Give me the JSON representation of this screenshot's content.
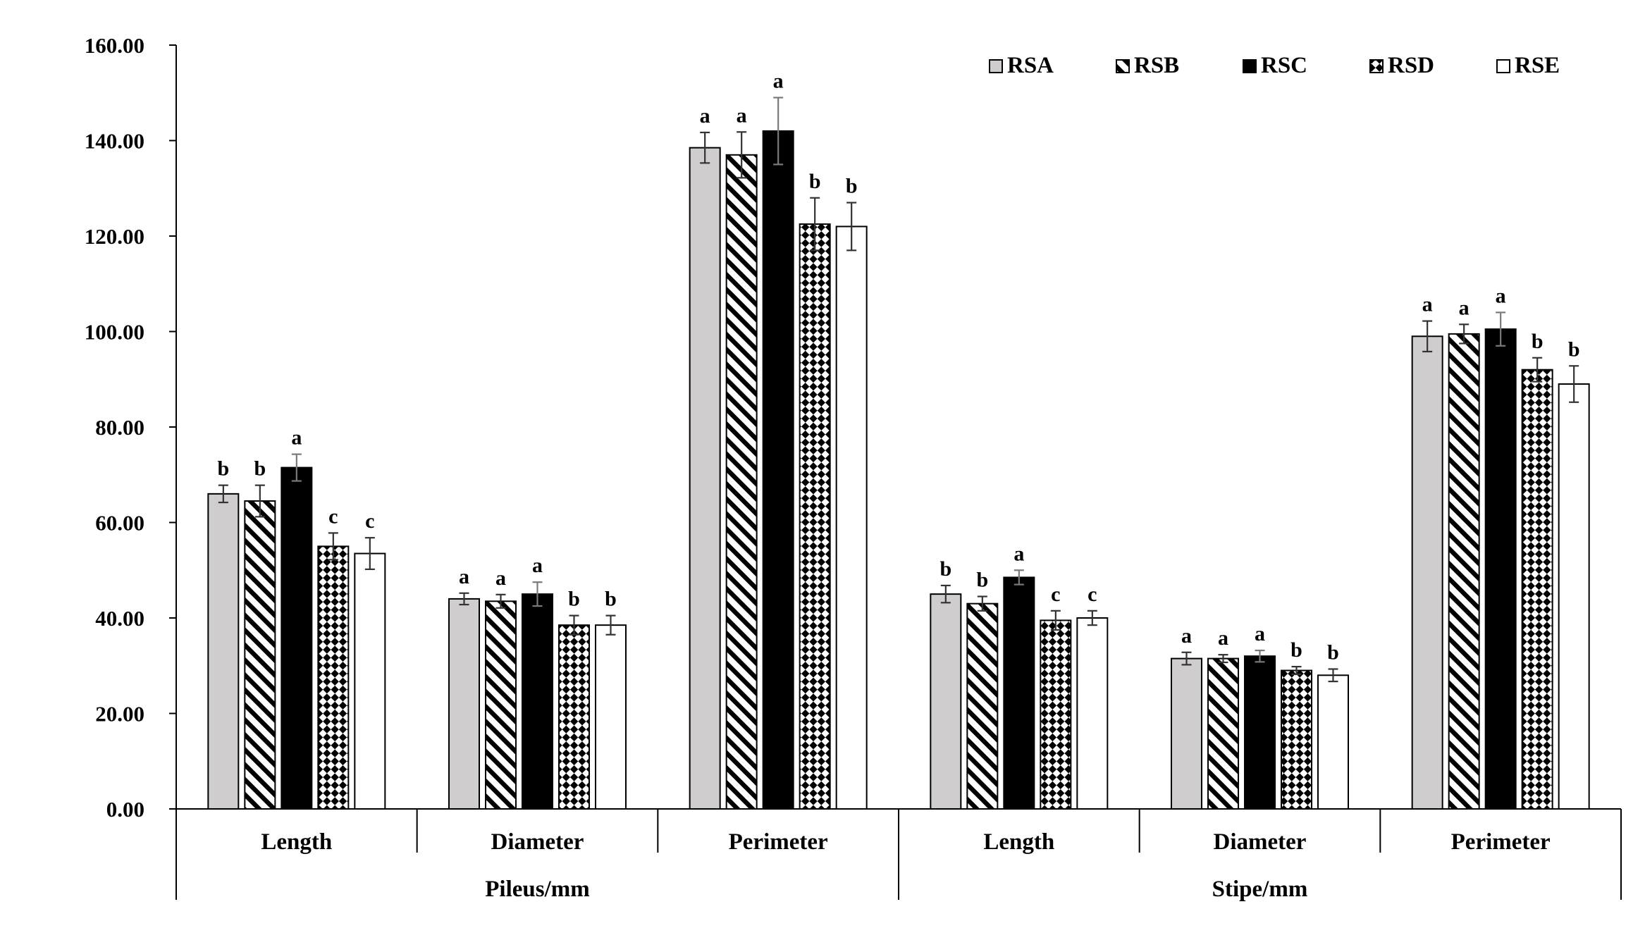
{
  "chart_data": {
    "type": "bar",
    "title": "",
    "ylim": [
      0,
      160
    ],
    "yticks": [
      0,
      20,
      40,
      60,
      80,
      100,
      120,
      140,
      160
    ],
    "ytick_labels": [
      "0.00",
      "20.00",
      "40.00",
      "60.00",
      "80.00",
      "100.00",
      "120.00",
      "140.00",
      "160.00"
    ],
    "grid": false,
    "legend_position": "top-right",
    "groups": [
      {
        "label": "Pileus/mm",
        "category_indices": [
          0,
          1,
          2
        ]
      },
      {
        "label": "Stipe/mm",
        "category_indices": [
          3,
          4,
          5
        ]
      }
    ],
    "categories": [
      "Length",
      "Diameter",
      "Perimeter",
      "Length",
      "Diameter",
      "Perimeter"
    ],
    "series": [
      {
        "name": "RSA",
        "pattern": "light-gray",
        "values": [
          66.0,
          44.0,
          138.5,
          45.0,
          31.5,
          99.0
        ],
        "errors": [
          1.8,
          1.2,
          3.2,
          1.8,
          1.3,
          3.2
        ],
        "letters": [
          "b",
          "a",
          "a",
          "b",
          "a",
          "a"
        ]
      },
      {
        "name": "RSB",
        "pattern": "diagonal-hatch",
        "values": [
          64.5,
          43.5,
          137.0,
          43.0,
          31.5,
          99.5
        ],
        "errors": [
          3.3,
          1.4,
          4.8,
          1.5,
          0.8,
          2.0
        ],
        "letters": [
          "b",
          "a",
          "a",
          "b",
          "a",
          "a"
        ]
      },
      {
        "name": "RSC",
        "pattern": "solid-black",
        "values": [
          71.5,
          45.0,
          142.0,
          48.5,
          32.0,
          100.5
        ],
        "errors": [
          2.8,
          2.5,
          7.0,
          1.5,
          1.2,
          3.5
        ],
        "letters": [
          "a",
          "a",
          "a",
          "a",
          "a",
          "a"
        ]
      },
      {
        "name": "RSD",
        "pattern": "checker",
        "values": [
          55.0,
          38.5,
          122.5,
          39.5,
          29.0,
          92.0
        ],
        "errors": [
          2.8,
          2.0,
          5.5,
          2.0,
          0.8,
          2.5
        ],
        "letters": [
          "c",
          "b",
          "b",
          "c",
          "b",
          "b"
        ]
      },
      {
        "name": "RSE",
        "pattern": "white",
        "values": [
          53.5,
          38.5,
          122.0,
          40.0,
          28.0,
          89.0
        ],
        "errors": [
          3.3,
          2.0,
          5.0,
          1.5,
          1.3,
          3.8
        ],
        "letters": [
          "c",
          "b",
          "b",
          "c",
          "b",
          "b"
        ]
      }
    ]
  }
}
